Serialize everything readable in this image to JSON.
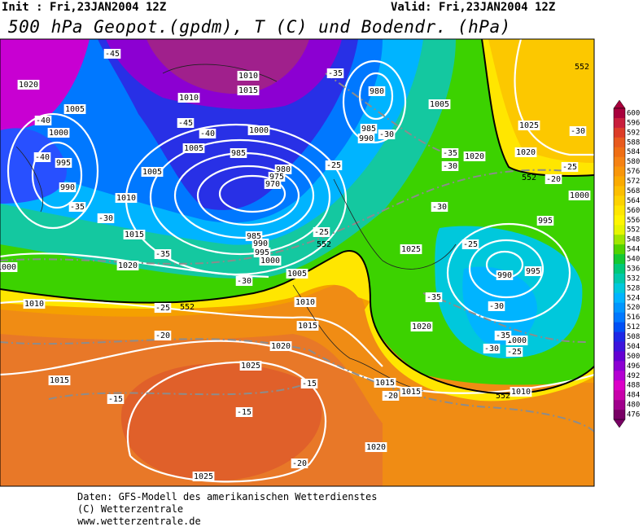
{
  "header": {
    "init": "Init : Fri,23JAN2004 12Z",
    "valid": "Valid: Fri,23JAN2004 12Z",
    "title": "500 hPa Geopot.(gpdm), T (C) und Bodendr. (hPa)"
  },
  "legend": {
    "levels": [
      600,
      596,
      592,
      588,
      584,
      580,
      576,
      572,
      568,
      564,
      560,
      556,
      552,
      548,
      544,
      540,
      536,
      532,
      528,
      524,
      520,
      516,
      512,
      508,
      504,
      500,
      496,
      492,
      488,
      484,
      480,
      476
    ],
    "colors": [
      "#a8003c",
      "#c81e3c",
      "#dc3c28",
      "#e85a1e",
      "#ef6e14",
      "#f58214",
      "#f8960a",
      "#faaa00",
      "#fcbe00",
      "#fdd200",
      "#ffe600",
      "#fff500",
      "#e6f500",
      "#a0e600",
      "#50d200",
      "#14c832",
      "#00c878",
      "#00c8aa",
      "#00c8dc",
      "#00b4ff",
      "#0096ff",
      "#0078ff",
      "#0050f5",
      "#1e28e6",
      "#3c14dc",
      "#6400d2",
      "#8c00d2",
      "#b400d2",
      "#dc00c8",
      "#c800aa",
      "#a0008c",
      "#780064"
    ]
  },
  "map": {
    "isobar_labels": [
      "1020",
      "1005",
      "1000",
      "995",
      "990",
      "1010",
      "1010",
      "1015",
      "1005",
      "1000",
      "985",
      "980",
      "975",
      "970",
      "1005",
      "1010",
      "1015",
      "1020",
      "985",
      "990",
      "995",
      "1000",
      "1005",
      "1010",
      "1015",
      "1020",
      "1025",
      "1015",
      "1025",
      "1020",
      "1015",
      "1015",
      "1010",
      "1000",
      "995",
      "990",
      "1020",
      "1025",
      "995",
      "1000",
      "1020",
      "1025",
      "1020",
      "1005",
      "985",
      "990",
      "980",
      "1010",
      "1000"
    ],
    "temperature_labels": [
      "-45",
      "-40",
      "-40",
      "-35",
      "-30",
      "-45",
      "-40",
      "-25",
      "-35",
      "-30",
      "-25",
      "-20",
      "-15",
      "-15",
      "-15",
      "-20",
      "-20",
      "-35",
      "-30",
      "-35",
      "-30",
      "-30",
      "-25",
      "-35",
      "-30",
      "-35",
      "-30",
      "-25",
      "-25",
      "-30",
      "-25",
      "-20"
    ],
    "height_labels": [
      "552",
      "552",
      "552",
      "552",
      "552"
    ]
  },
  "footer": {
    "source": "Daten: GFS-Modell des amerikanischen Wetterdienstes",
    "copyright": "(C) Wetterzentrale",
    "url": "www.wetterzentrale.de"
  }
}
